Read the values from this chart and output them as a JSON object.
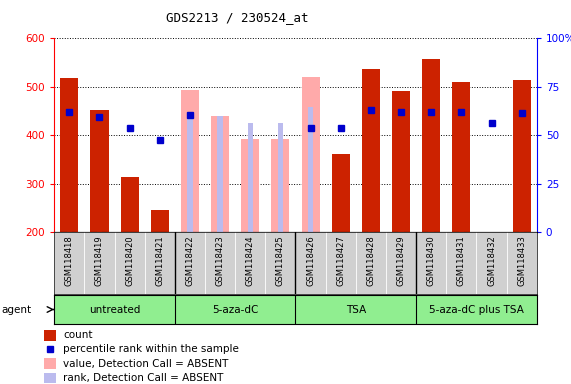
{
  "title": "GDS2213 / 230524_at",
  "samples": [
    "GSM118418",
    "GSM118419",
    "GSM118420",
    "GSM118421",
    "GSM118422",
    "GSM118423",
    "GSM118424",
    "GSM118425",
    "GSM118426",
    "GSM118427",
    "GSM118428",
    "GSM118429",
    "GSM118430",
    "GSM118431",
    "GSM118432",
    "GSM118433"
  ],
  "absent_mask": [
    false,
    false,
    false,
    false,
    true,
    true,
    true,
    true,
    true,
    false,
    false,
    false,
    false,
    false,
    true,
    false
  ],
  "count_present": [
    518,
    452,
    314,
    246,
    null,
    null,
    null,
    null,
    null,
    362,
    537,
    492,
    558,
    510,
    null,
    515
  ],
  "rank_present": [
    449,
    438,
    null,
    null,
    null,
    null,
    null,
    null,
    null,
    null,
    453,
    449,
    449,
    449,
    null,
    446
  ],
  "count_absent": [
    null,
    null,
    null,
    null,
    493,
    440,
    392,
    392,
    521,
    null,
    null,
    null,
    null,
    null,
    null,
    null
  ],
  "rank_absent": [
    null,
    null,
    null,
    null,
    443,
    440,
    425,
    425,
    458,
    null,
    null,
    null,
    null,
    null,
    null,
    null
  ],
  "blue_dots": [
    449,
    438,
    416,
    390,
    443,
    null,
    null,
    null,
    416,
    416,
    453,
    449,
    449,
    449,
    425,
    446
  ],
  "groups": [
    {
      "label": "untreated",
      "start": 0,
      "end": 4
    },
    {
      "label": "5-aza-dC",
      "start": 4,
      "end": 8
    },
    {
      "label": "TSA",
      "start": 8,
      "end": 12
    },
    {
      "label": "5-aza-dC plus TSA",
      "start": 12,
      "end": 16
    }
  ],
  "ylim_left": [
    200,
    600
  ],
  "ylim_right": [
    0,
    100
  ],
  "bar_color_present": "#cc2200",
  "bar_color_absent": "#ffaaaa",
  "rank_color_absent": "#bbbbee",
  "dot_color": "#0000cc",
  "yticks_left": [
    200,
    300,
    400,
    500,
    600
  ],
  "yticks_right": [
    0,
    25,
    50,
    75,
    100
  ]
}
